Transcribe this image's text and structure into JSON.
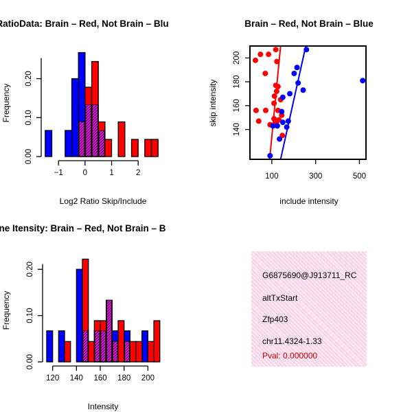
{
  "chart_data": [
    {
      "type": "histogram",
      "title": "RatioData: Brain – Red, Not Brain – Blu",
      "xlabel": "Log2 Ratio Skip/Include",
      "ylabel": "Frequency",
      "xticks": [
        -1,
        0,
        1,
        2
      ],
      "xtick_labels": [
        "−1",
        "0",
        "1",
        "2"
      ],
      "yticks": [
        0.0,
        0.1,
        0.2
      ],
      "ytick_labels": [
        "0.00",
        "0.10",
        "0.20"
      ],
      "xlim": [
        -1.6,
        2.9
      ],
      "ylim": [
        0,
        0.275
      ],
      "bin_width": 0.25,
      "series": [
        {
          "name": "Not Brain",
          "color": "#0000ff",
          "bins": [
            {
              "x0": -1.5,
              "v": 0.067
            },
            {
              "x0": -0.75,
              "v": 0.067
            },
            {
              "x0": -0.5,
              "v": 0.2
            },
            {
              "x0": -0.25,
              "v": 0.267
            },
            {
              "x0": 0.0,
              "v": 0.133
            },
            {
              "x0": 0.25,
              "v": 0.133
            },
            {
              "x0": 0.5,
              "v": 0.067
            }
          ]
        },
        {
          "name": "Brain",
          "color": "#ff0000",
          "bins": [
            {
              "x0": -0.25,
              "v": 0.089
            },
            {
              "x0": 0.0,
              "v": 0.178
            },
            {
              "x0": 0.25,
              "v": 0.244
            },
            {
              "x0": 0.5,
              "v": 0.089
            },
            {
              "x0": 0.75,
              "v": 0.044
            },
            {
              "x0": 1.25,
              "v": 0.089
            },
            {
              "x0": 1.75,
              "v": 0.044
            },
            {
              "x0": 2.25,
              "v": 0.044
            },
            {
              "x0": 2.5,
              "v": 0.044
            }
          ]
        }
      ]
    },
    {
      "type": "scatter",
      "title": "Brain – Red, Not Brain – Blue",
      "xlabel": "include intensity",
      "ylabel": "skip intensity",
      "xlim": [
        0,
        530
      ],
      "ylim": [
        115,
        210
      ],
      "xticks": [
        100,
        300,
        500
      ],
      "yticks": [
        140,
        160,
        180,
        200
      ],
      "series": [
        {
          "name": "Brain",
          "color": "#ff0000",
          "points": [
            [
              25,
              198
            ],
            [
              48,
              203
            ],
            [
              70,
              187
            ],
            [
              72,
              156
            ],
            [
              28,
              156
            ],
            [
              40,
              147
            ],
            [
              85,
              203
            ],
            [
              110,
              162
            ],
            [
              118,
              177
            ],
            [
              112,
              168
            ],
            [
              120,
              145
            ],
            [
              140,
              165
            ],
            [
              122,
              172
            ],
            [
              128,
              176
            ],
            [
              132,
              148
            ],
            [
              145,
              152
            ],
            [
              128,
              156
            ],
            [
              110,
              149
            ],
            [
              92,
              144
            ],
            [
              148,
              135
            ],
            [
              118,
              207
            ],
            [
              123,
              197
            ]
          ],
          "fit": {
            "x0": 90,
            "y0": 115,
            "x1": 140,
            "y1": 210
          }
        },
        {
          "name": "Not Brain",
          "color": "#0000ff",
          "points": [
            [
              92,
              118
            ],
            [
              105,
              143
            ],
            [
              125,
              143
            ],
            [
              135,
              132
            ],
            [
              150,
              146
            ],
            [
              145,
              155
            ],
            [
              150,
              167
            ],
            [
              168,
              142
            ],
            [
              175,
              147
            ],
            [
              182,
              170
            ],
            [
              202,
              187
            ],
            [
              215,
              192
            ],
            [
              220,
              179
            ],
            [
              243,
              173
            ],
            [
              258,
              207
            ],
            [
              515,
              181
            ]
          ],
          "fit": {
            "x0": 140,
            "y0": 115,
            "x1": 255,
            "y1": 210
          }
        }
      ]
    },
    {
      "type": "histogram",
      "title": "ne Itensity: Brain – Red, Not Brain – B",
      "xlabel": "Intensity",
      "ylabel": "Frequency",
      "xticks": [
        120,
        140,
        160,
        180,
        200
      ],
      "xtick_labels": [
        "120",
        "140",
        "160",
        "180",
        "200"
      ],
      "yticks": [
        0.0,
        0.1,
        0.2
      ],
      "ytick_labels": [
        "0.00",
        "0.10",
        "0.20"
      ],
      "xlim": [
        115,
        209
      ],
      "ylim": [
        0,
        0.23
      ],
      "bin_width": 5,
      "series": [
        {
          "name": "Not Brain",
          "color": "#0000ff",
          "bins": [
            {
              "x0": 115,
              "v": 0.067
            },
            {
              "x0": 125,
              "v": 0.067
            },
            {
              "x0": 140,
              "v": 0.2
            },
            {
              "x0": 145,
              "v": 0.067
            },
            {
              "x0": 155,
              "v": 0.067
            },
            {
              "x0": 160,
              "v": 0.067
            },
            {
              "x0": 165,
              "v": 0.133
            },
            {
              "x0": 170,
              "v": 0.067
            },
            {
              "x0": 180,
              "v": 0.067
            },
            {
              "x0": 195,
              "v": 0.067
            }
          ]
        },
        {
          "name": "Brain",
          "color": "#ff0000",
          "bins": [
            {
              "x0": 130,
              "v": 0.044
            },
            {
              "x0": 145,
              "v": 0.222
            },
            {
              "x0": 150,
              "v": 0.044
            },
            {
              "x0": 155,
              "v": 0.089
            },
            {
              "x0": 160,
              "v": 0.089
            },
            {
              "x0": 165,
              "v": 0.133
            },
            {
              "x0": 170,
              "v": 0.044
            },
            {
              "x0": 175,
              "v": 0.089
            },
            {
              "x0": 180,
              "v": 0.044
            },
            {
              "x0": 185,
              "v": 0.044
            },
            {
              "x0": 190,
              "v": 0.044
            },
            {
              "x0": 200,
              "v": 0.044
            },
            {
              "x0": 205,
              "v": 0.089
            }
          ]
        }
      ]
    }
  ],
  "info_panel": {
    "probe_id": "G6875690@J913711_RC",
    "event_type": "altTxStart",
    "gene": "Zfp403",
    "location": "chr11.4324-1.33",
    "pval": "Pval: 0.000000"
  }
}
